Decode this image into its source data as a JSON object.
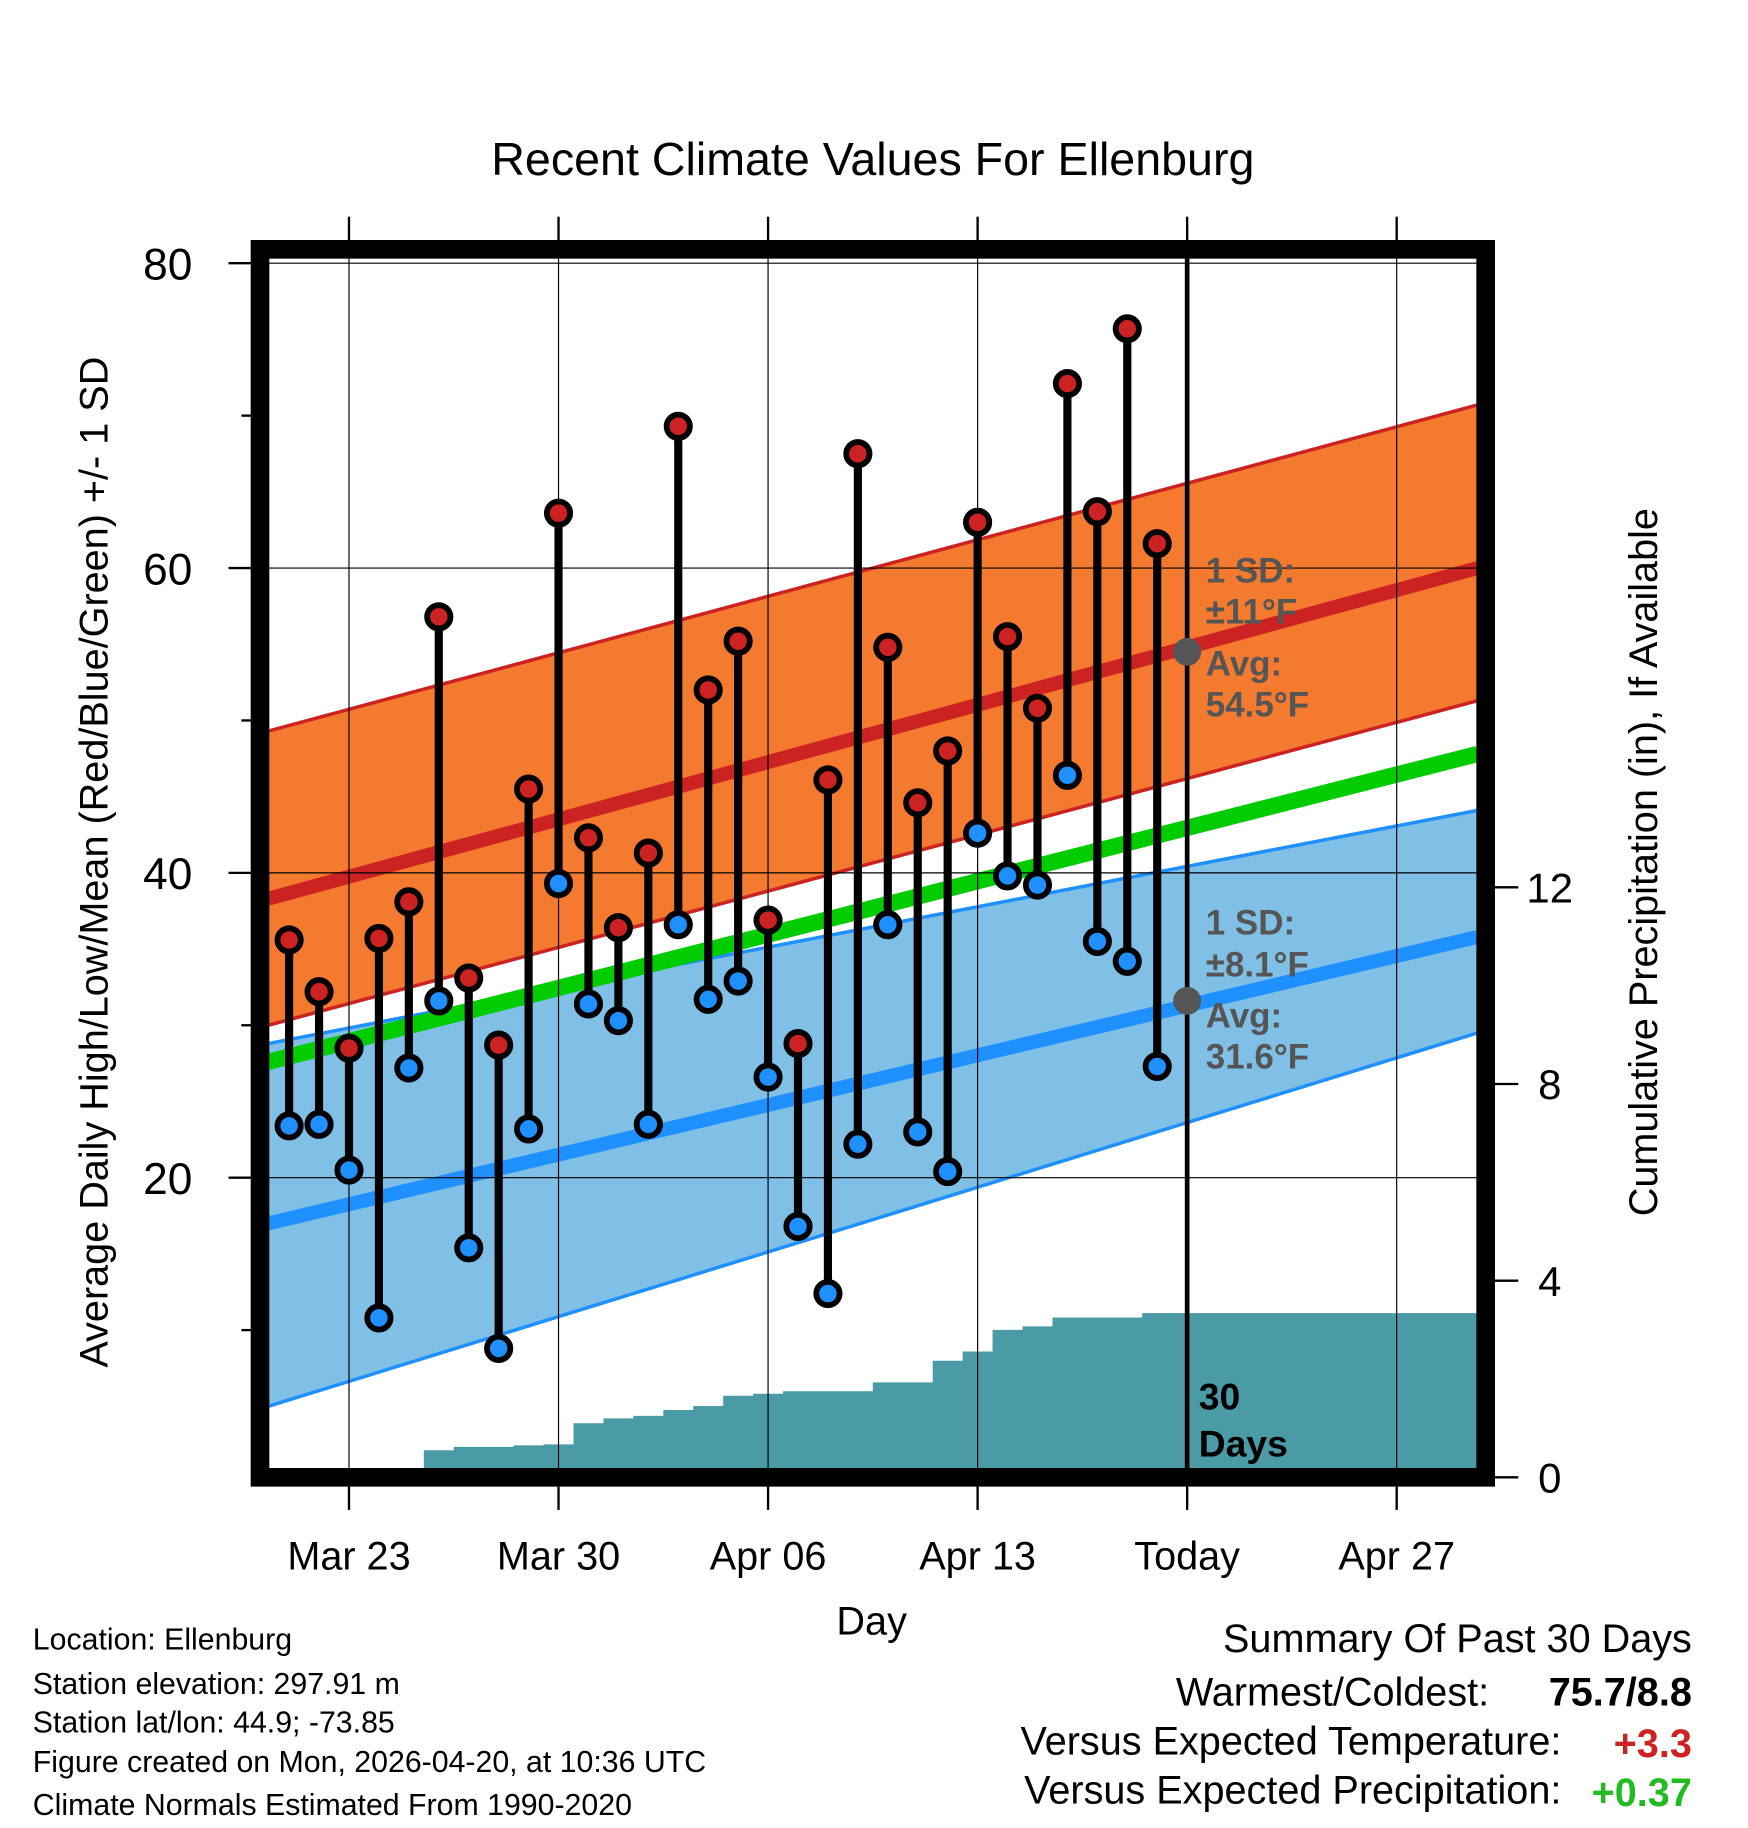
{
  "chart_data": {
    "type": "line",
    "title": "Recent Climate Values For Ellenburg",
    "xlabel": "Day",
    "ylabel": "Average Daily High/Low/Mean (Red/Blue/Green) +/- 1 SD",
    "y2label": "Cumulative Precipitation (in), If Available",
    "ylim": [
      0.8,
      80.3
    ],
    "y2lim": [
      0,
      20
    ],
    "xlim": [
      -2.7,
      37.7
    ],
    "x_ticks": [
      {
        "x": 0,
        "label": "Mar 23"
      },
      {
        "x": 7,
        "label": "Mar 30"
      },
      {
        "x": 14,
        "label": "Apr 06"
      },
      {
        "x": 21,
        "label": "Apr 13"
      },
      {
        "x": 28,
        "label": "Today"
      },
      {
        "x": 35,
        "label": "Apr 27"
      }
    ],
    "y_ticks": [
      "20",
      "40",
      "60",
      "80"
    ],
    "y_ticks_values": [
      20,
      40,
      60,
      80
    ],
    "y_minor_ticks": [
      10,
      30,
      50,
      70
    ],
    "y2_ticks": [
      "0",
      "4",
      "8",
      "12"
    ],
    "y2_ticks_values": [
      0,
      4,
      8,
      12
    ],
    "grid": true,
    "days": [
      -2,
      -1,
      0,
      1,
      2,
      3,
      4,
      5,
      6,
      7,
      8,
      9,
      10,
      11,
      12,
      13,
      14,
      15,
      16,
      17,
      18,
      19,
      20,
      21,
      22,
      23,
      24,
      25,
      26,
      27
    ],
    "series": [
      {
        "name": "Daily High",
        "color": "#cc2222",
        "values": [
          35.6,
          32.2,
          28.5,
          35.7,
          38.1,
          56.8,
          33.1,
          28.7,
          45.5,
          63.6,
          42.3,
          36.4,
          41.3,
          69.3,
          52.0,
          55.2,
          36.9,
          28.8,
          46.1,
          67.5,
          54.8,
          44.6,
          48.0,
          63.0,
          55.5,
          50.8,
          72.1,
          63.7,
          75.7,
          61.6
        ]
      },
      {
        "name": "Daily Low",
        "color": "#1e90ff",
        "values": [
          23.4,
          23.5,
          20.5,
          10.8,
          27.2,
          31.6,
          15.4,
          8.8,
          23.2,
          39.3,
          31.4,
          30.3,
          23.5,
          36.6,
          31.7,
          32.9,
          26.6,
          16.8,
          12.4,
          22.2,
          36.6,
          23.0,
          20.4,
          42.6,
          39.8,
          39.2,
          46.4,
          35.5,
          34.2,
          27.3
        ]
      },
      {
        "name": "Cumulative Precipitation",
        "color": "#4a9ba5",
        "values": [
          0,
          0,
          0,
          0,
          0.05,
          0.55,
          0.62,
          0.62,
          0.65,
          0.67,
          1.1,
          1.2,
          1.25,
          1.37,
          1.45,
          1.66,
          1.7,
          1.75,
          1.75,
          1.75,
          1.93,
          1.93,
          2.37,
          2.56,
          3.0,
          3.07,
          3.25,
          3.25,
          3.25,
          3.34
        ]
      }
    ],
    "normals": {
      "x": [
        -2.7,
        37.7
      ],
      "high_avg": [
        38.3,
        60.0
      ],
      "high_upper": [
        49.3,
        70.7
      ],
      "high_lower": [
        30.0,
        51.3
      ],
      "mean_avg": [
        27.6,
        47.8
      ],
      "low_avg": [
        17.0,
        35.8
      ],
      "low_upper": [
        28.8,
        44.1
      ],
      "low_lower": [
        5.0,
        29.5
      ]
    },
    "today_x": 28,
    "annotations": {
      "high": {
        "sd": "1 SD:",
        "sd_val": "±11°F",
        "avg": "Avg:",
        "avg_val": "54.5°F",
        "value": 54.5
      },
      "low": {
        "sd": "1 SD:",
        "sd_val": "±8.1°F",
        "avg": "Avg:",
        "avg_val": "31.6°F",
        "value": 31.6
      },
      "period": "30",
      "period2": "Days"
    },
    "colors": {
      "high_band": "#f47a30",
      "high_line": "#cc2222",
      "low_band": "#80c0e6",
      "low_line": "#1e90ff",
      "mean_line": "#00cc00",
      "precip": "#4a9ba5",
      "annot": "#555555"
    }
  },
  "footer": {
    "location": "Location: Ellenburg",
    "elevation": "Station elevation: 297.91 m",
    "latlon": "Station lat/lon: 44.9; -73.85",
    "created": "Figure created on Mon, 2026-04-20, at 10:36 UTC",
    "normals": "Climate Normals Estimated From 1990-2020"
  },
  "summary": {
    "title": "Summary Of Past 30 Days",
    "warmest_label": "Warmest/Coldest:",
    "warmest_value": "75.7/8.8",
    "temp_label": "Versus Expected Temperature:",
    "temp_value": "+3.3",
    "temp_color": "#cc2222",
    "precip_label": "Versus Expected Precipitation:",
    "precip_value": "+0.37",
    "precip_color": "#22bb22"
  }
}
